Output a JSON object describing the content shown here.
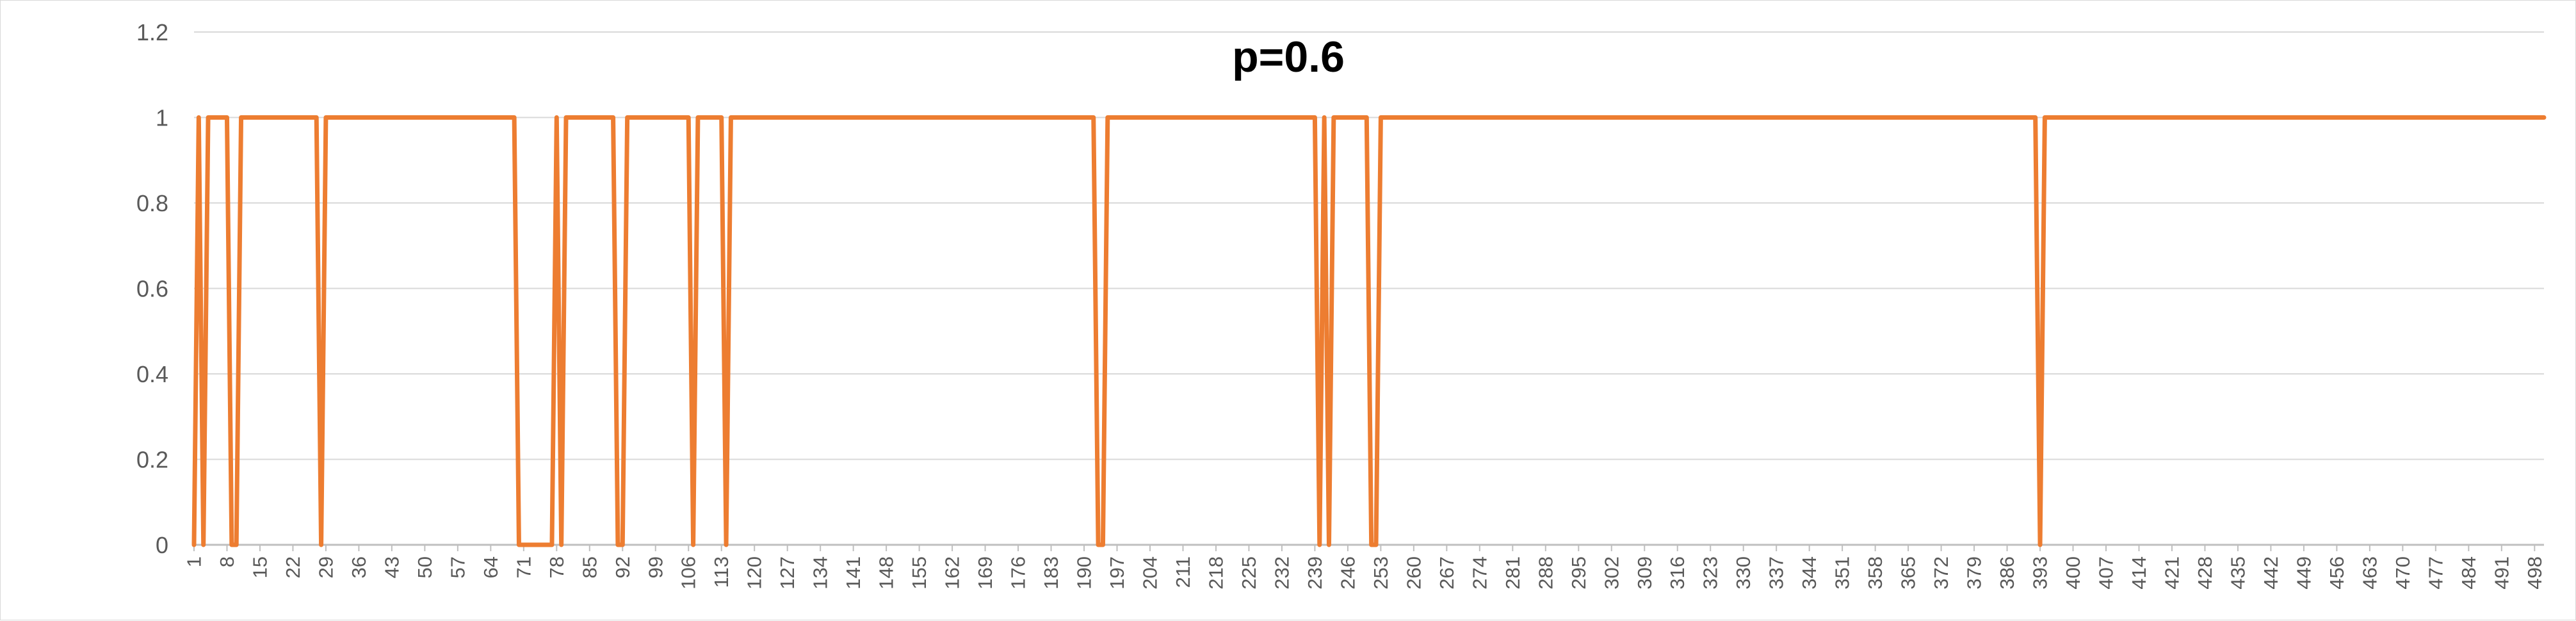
{
  "chart_data": {
    "type": "line",
    "title": "p=0.6",
    "xlabel": "",
    "ylabel": "",
    "ylim": [
      0,
      1.2
    ],
    "yticks": [
      "0",
      "0.2",
      "0.4",
      "0.6",
      "0.8",
      "1",
      "1.2"
    ],
    "x_range": [
      1,
      500
    ],
    "x_tick_labels": [
      1,
      8,
      15,
      22,
      29,
      36,
      43,
      50,
      57,
      64,
      71,
      78,
      85,
      92,
      99,
      106,
      113,
      120,
      127,
      134,
      141,
      148,
      155,
      162,
      169,
      176,
      183,
      190,
      197,
      204,
      211,
      218,
      225,
      232,
      239,
      246,
      253,
      260,
      267,
      274,
      281,
      288,
      295,
      302,
      309,
      316,
      323,
      330,
      337,
      344,
      351,
      358,
      365,
      372,
      379,
      386,
      393,
      400,
      407,
      414,
      421,
      428,
      435,
      442,
      449,
      456,
      463,
      470,
      477,
      484,
      491,
      498
    ],
    "grid": true,
    "legend": "none",
    "series": [
      {
        "color": "#ED7D31",
        "default_value": 1,
        "zero_at_x": [
          1,
          3,
          9,
          10,
          28,
          70,
          71,
          72,
          73,
          74,
          75,
          76,
          77,
          79,
          91,
          92,
          107,
          114,
          193,
          194,
          240,
          242,
          251,
          252,
          393
        ]
      }
    ]
  }
}
